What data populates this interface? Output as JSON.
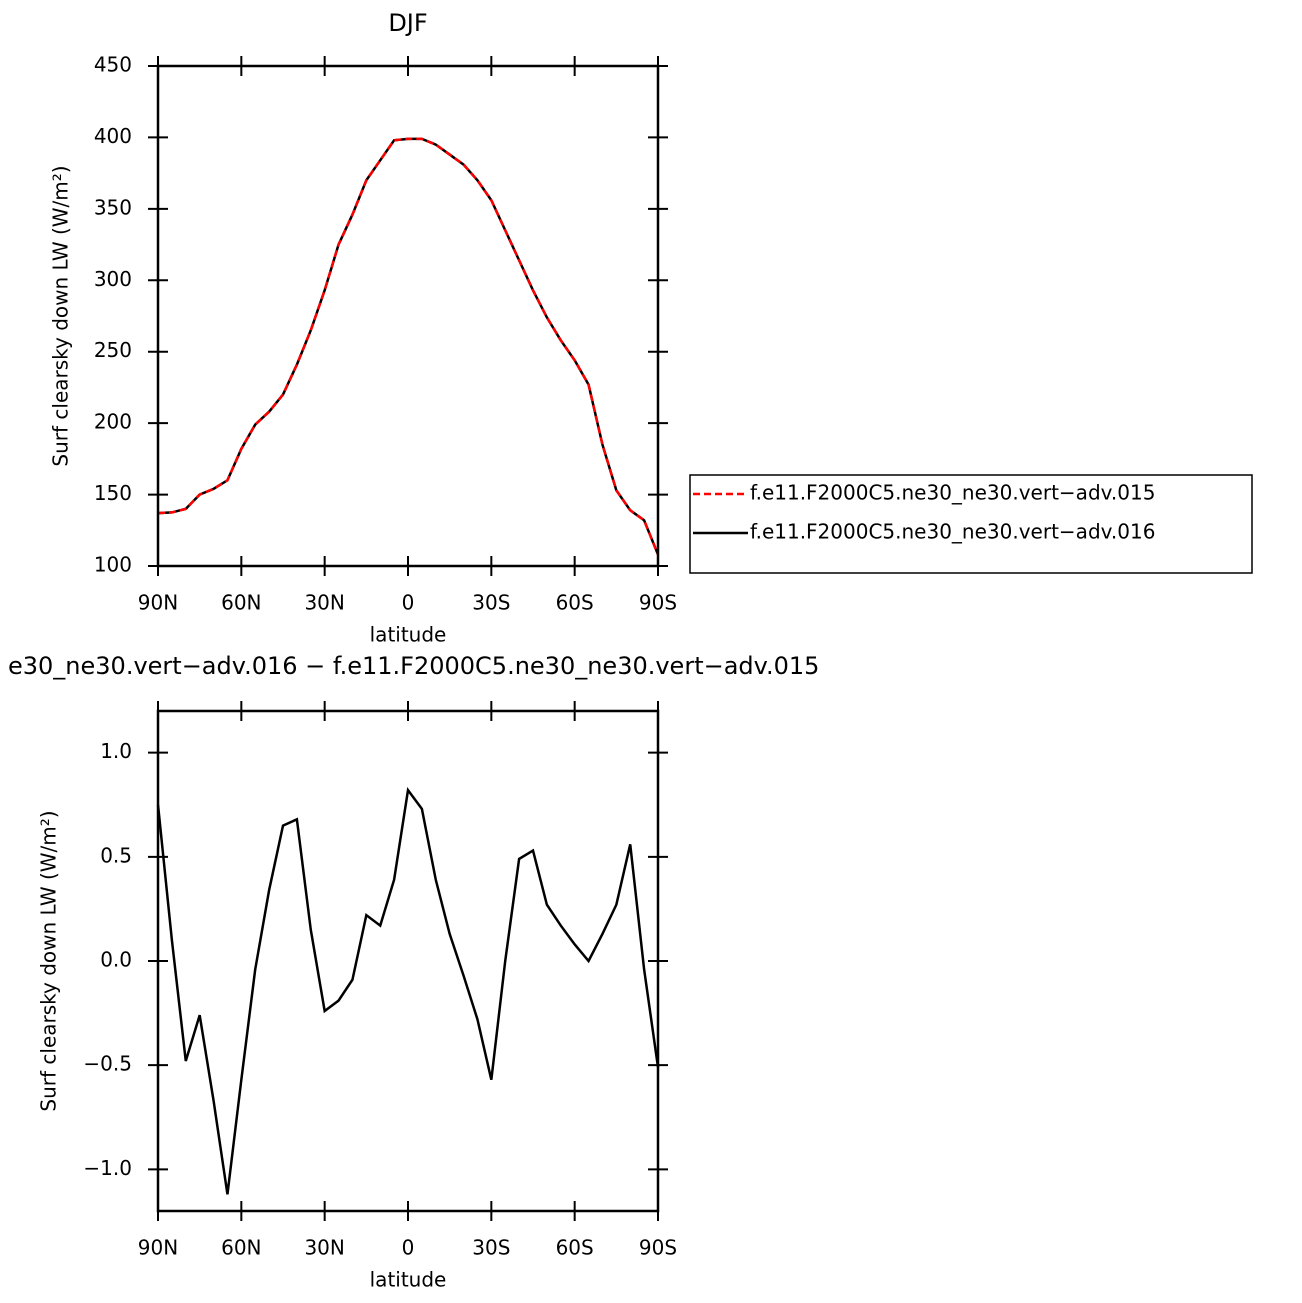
{
  "chart_data": [
    {
      "type": "line",
      "title": "DJF",
      "xlabel": "latitude",
      "ylabel": "Surf clearsky down LW (W/m²)",
      "x": [
        90,
        85,
        80,
        75,
        70,
        65,
        60,
        55,
        50,
        45,
        40,
        35,
        30,
        25,
        20,
        15,
        10,
        5,
        0,
        -5,
        -10,
        -15,
        -20,
        -25,
        -30,
        -35,
        -40,
        -45,
        -50,
        -55,
        -60,
        -65,
        -70,
        -75,
        -80,
        -85,
        -90
      ],
      "series": [
        {
          "name": "f.e11.F2000C5.ne30_ne30.vert−adv.015",
          "color": "#ff0000",
          "linestyle": "dashed",
          "values": [
            137,
            137.5,
            140,
            150,
            154,
            160,
            182,
            199,
            208,
            220,
            241,
            265,
            293,
            325,
            346,
            370,
            384,
            398,
            399,
            399,
            395,
            388,
            381,
            370,
            356,
            335,
            314,
            293,
            274,
            258,
            244,
            227,
            185,
            153,
            139,
            132,
            108
          ]
        },
        {
          "name": "f.e11.F2000C5.ne30_ne30.vert−adv.016",
          "color": "#000000",
          "linestyle": "solid",
          "values": [
            137,
            137.5,
            140,
            150,
            154,
            160,
            182,
            199,
            208,
            220,
            241,
            265,
            293,
            325,
            346,
            370,
            384,
            398,
            399,
            399,
            395,
            388,
            381,
            370,
            356,
            335,
            314,
            293,
            274,
            258,
            244,
            227,
            185,
            153,
            139,
            132,
            108
          ]
        }
      ],
      "xlim": [
        90,
        -90
      ],
      "xticks": [
        {
          "value": 90,
          "label": "90N"
        },
        {
          "value": 60,
          "label": "60N"
        },
        {
          "value": 30,
          "label": "30N"
        },
        0,
        {
          "value": -30,
          "label": "30S"
        },
        {
          "value": -60,
          "label": "60S"
        },
        {
          "value": -90,
          "label": "90S"
        }
      ],
      "ylim": [
        100,
        450
      ],
      "yticks": [
        100,
        150,
        200,
        250,
        300,
        350,
        400,
        450
      ],
      "legend": "right"
    },
    {
      "type": "line",
      "title": "e30_ne30.vert−adv.016 − f.e11.F2000C5.ne30_ne30.vert−adv.015",
      "xlabel": "latitude",
      "ylabel": "Surf clearsky down LW (W/m²)",
      "x": [
        90,
        85,
        80,
        75,
        70,
        65,
        60,
        55,
        50,
        45,
        40,
        35,
        30,
        25,
        20,
        15,
        10,
        5,
        0,
        -5,
        -10,
        -15,
        -20,
        -25,
        -30,
        -35,
        -40,
        -45,
        -50,
        -55,
        -60,
        -65,
        -70,
        -75,
        -80,
        -85,
        -90
      ],
      "series": [
        {
          "color": "#000000",
          "linestyle": "solid",
          "values": [
            0.75,
            0.1,
            -0.48,
            -0.26,
            -0.67,
            -1.12,
            -0.57,
            -0.04,
            0.34,
            0.65,
            0.68,
            0.15,
            -0.24,
            -0.19,
            -0.09,
            0.22,
            0.17,
            0.39,
            0.82,
            0.73,
            0.39,
            0.13,
            -0.07,
            -0.28,
            -0.57,
            0.0,
            0.49,
            0.53,
            0.27,
            0.17,
            0.08,
            0.0,
            0.13,
            0.27,
            0.56,
            -0.04,
            -0.51
          ]
        }
      ],
      "xlim": [
        90,
        -90
      ],
      "xticks": [
        {
          "value": 90,
          "label": "90N"
        },
        {
          "value": 60,
          "label": "60N"
        },
        {
          "value": 30,
          "label": "30N"
        },
        0,
        {
          "value": -30,
          "label": "30S"
        },
        {
          "value": -60,
          "label": "60S"
        },
        {
          "value": -90,
          "label": "90S"
        }
      ],
      "ylim": [
        -1.2,
        1.2
      ],
      "yticks": [
        {
          "value": -1,
          "label": "−1.0"
        },
        {
          "value": -0.5,
          "label": "−0.5"
        },
        {
          "value": 0,
          "label": "0.0"
        },
        0.5,
        {
          "value": 1,
          "label": "1.0"
        }
      ]
    }
  ]
}
